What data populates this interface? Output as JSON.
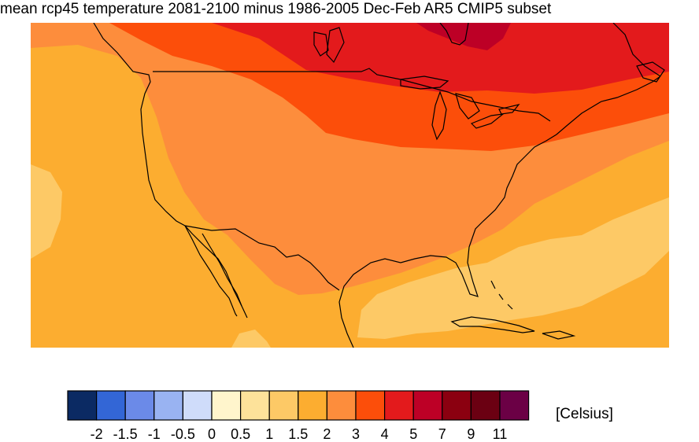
{
  "title": "mean rcp45 temperature 2081-2100 minus 1986-2005 Dec-Feb AR5 CMIP5 subset",
  "map": {
    "region": "North America",
    "background_color": "#fcad30",
    "zones": [
      {
        "name": "north-canada-high",
        "color": "#bd0026",
        "level": "5-7"
      },
      {
        "name": "north-canada",
        "color": "#e31a1c",
        "level": "4-5"
      },
      {
        "name": "great-lakes-band",
        "color": "#fc4e0a",
        "level": "3-4"
      },
      {
        "name": "central-us",
        "color": "#fd8d3c",
        "level": "2-3"
      },
      {
        "name": "gulf-and-east-pacific",
        "color": "#fdcb6e",
        "level": "1-1.5"
      }
    ]
  },
  "legend": {
    "units": "[Celsius]",
    "colors": [
      "#0b2a63",
      "#3366d6",
      "#6b8ae8",
      "#99b3f2",
      "#cfdcfa",
      "#fff5cc",
      "#fde29a",
      "#fdc966",
      "#fcad30",
      "#fd8d3c",
      "#fc4e0a",
      "#e31a1c",
      "#bd0026",
      "#8b0010",
      "#6b0012",
      "#6b0045"
    ],
    "tick_labels": [
      "-2",
      "-1.5",
      "-1",
      "-0.5",
      "0",
      "0.5",
      "1",
      "1.5",
      "2",
      "3",
      "4",
      "5",
      "7",
      "9",
      "11"
    ]
  }
}
